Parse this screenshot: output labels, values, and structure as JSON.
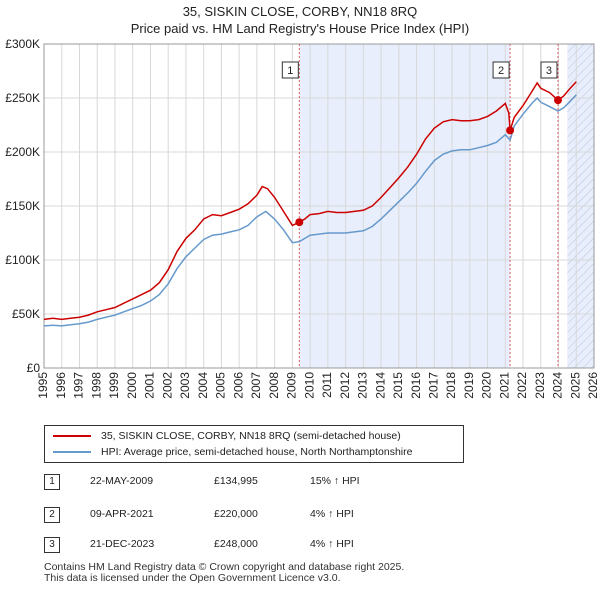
{
  "title_line1": "35, SISKIN CLOSE, CORBY, NN18 8RQ",
  "title_line2": "Price paid vs. HM Land Registry's House Price Index (HPI)",
  "colors": {
    "property": "#cc0000",
    "hpi": "#6699cc",
    "shade": "#e8eefb",
    "marker_vline": "#e06060"
  },
  "legend": {
    "property_label": "35, SISKIN CLOSE, CORBY, NN18 8RQ (semi-detached house)",
    "hpi_label": "HPI: Average price, semi-detached house, North Northamptonshire"
  },
  "transactions": [
    {
      "num": "1",
      "date": "22-MAY-2009",
      "price": "£134,995",
      "hpi_change": "15% ↑ HPI"
    },
    {
      "num": "2",
      "date": "09-APR-2021",
      "price": "£220,000",
      "hpi_change": "4% ↑ HPI"
    },
    {
      "num": "3",
      "date": "21-DEC-2023",
      "price": "£248,000",
      "hpi_change": "4% ↑ HPI"
    }
  ],
  "footer_line1": "Contains HM Land Registry data © Crown copyright and database right 2025.",
  "footer_line2": "This data is licensed under the Open Government Licence v3.0.",
  "chart_data": {
    "type": "line",
    "title": "35, SISKIN CLOSE, CORBY, NN18 8RQ — Price paid vs. HM Land Registry's House Price Index (HPI)",
    "xlabel": "",
    "ylabel": "",
    "xlim": [
      1995,
      2026
    ],
    "ylim": [
      0,
      300000
    ],
    "x_ticks": [
      "1995",
      "1996",
      "1997",
      "1998",
      "1999",
      "2000",
      "2001",
      "2002",
      "2003",
      "2004",
      "2005",
      "2006",
      "2007",
      "2008",
      "2009",
      "2010",
      "2011",
      "2012",
      "2013",
      "2014",
      "2015",
      "2016",
      "2017",
      "2018",
      "2019",
      "2020",
      "2021",
      "2022",
      "2023",
      "2024",
      "2025",
      "2026"
    ],
    "y_ticks": [
      {
        "value": 0,
        "label": "£0"
      },
      {
        "value": 50000,
        "label": "£50K"
      },
      {
        "value": 100000,
        "label": "£100K"
      },
      {
        "value": 150000,
        "label": "£150K"
      },
      {
        "value": 200000,
        "label": "£200K"
      },
      {
        "value": 250000,
        "label": "£250K"
      },
      {
        "value": 300000,
        "label": "£300K"
      }
    ],
    "grid": true,
    "shaded_ranges": [
      [
        2009.39,
        2021.27
      ],
      [
        2024.5,
        2026
      ]
    ],
    "hatched_range": [
      2024.5,
      2026
    ],
    "markers": [
      {
        "label": "1",
        "x": 2009.39,
        "y": 134995
      },
      {
        "label": "2",
        "x": 2021.27,
        "y": 220000
      },
      {
        "label": "3",
        "x": 2023.97,
        "y": 248000
      }
    ],
    "series": [
      {
        "name": "35, SISKIN CLOSE, CORBY, NN18 8RQ (semi-detached house)",
        "x": [
          1995,
          1995.5,
          1996,
          1996.5,
          1997,
          1997.5,
          1998,
          1998.5,
          1999,
          1999.5,
          2000,
          2000.5,
          2001,
          2001.5,
          2002,
          2002.5,
          2003,
          2003.5,
          2004,
          2004.5,
          2005,
          2005.5,
          2006,
          2006.5,
          2007,
          2007.3,
          2007.6,
          2008,
          2008.5,
          2009,
          2009.39,
          2009.7,
          2010,
          2010.5,
          2011,
          2011.5,
          2012,
          2012.5,
          2013,
          2013.5,
          2014,
          2014.5,
          2015,
          2015.5,
          2016,
          2016.5,
          2017,
          2017.5,
          2018,
          2018.5,
          2019,
          2019.5,
          2020,
          2020.5,
          2021,
          2021.2,
          2021.27,
          2021.5,
          2022,
          2022.5,
          2022.8,
          2023,
          2023.5,
          2023.97,
          2024.3,
          2024.6,
          2025
        ],
        "values": [
          45000,
          46000,
          45000,
          46000,
          47000,
          49000,
          52000,
          54000,
          56000,
          60000,
          64000,
          68000,
          72000,
          79000,
          91000,
          108000,
          120000,
          128000,
          138000,
          142000,
          141000,
          144000,
          147000,
          152000,
          160000,
          168000,
          166000,
          158000,
          145000,
          132000,
          134995,
          138000,
          142000,
          143000,
          145000,
          144000,
          144000,
          145000,
          146000,
          150000,
          158000,
          167000,
          176000,
          186000,
          198000,
          212000,
          222000,
          228000,
          230000,
          229000,
          229000,
          230000,
          233000,
          238000,
          245000,
          236000,
          220000,
          232000,
          243000,
          256000,
          264000,
          259000,
          255000,
          248000,
          252000,
          258000,
          265000
        ]
      },
      {
        "name": "HPI: Average price, semi-detached house, North Northamptonshire",
        "x": [
          1995,
          1995.5,
          1996,
          1996.5,
          1997,
          1997.5,
          1998,
          1998.5,
          1999,
          1999.5,
          2000,
          2000.5,
          2001,
          2001.5,
          2002,
          2002.5,
          2003,
          2003.5,
          2004,
          2004.5,
          2005,
          2005.5,
          2006,
          2006.5,
          2007,
          2007.5,
          2008,
          2008.5,
          2009,
          2009.39,
          2009.7,
          2010,
          2010.5,
          2011,
          2011.5,
          2012,
          2012.5,
          2013,
          2013.5,
          2014,
          2014.5,
          2015,
          2015.5,
          2016,
          2016.5,
          2017,
          2017.5,
          2018,
          2018.5,
          2019,
          2019.5,
          2020,
          2020.5,
          2021,
          2021.27,
          2021.5,
          2022,
          2022.5,
          2022.8,
          2023,
          2023.5,
          2023.97,
          2024.3,
          2024.6,
          2025
        ],
        "values": [
          39000,
          39500,
          39000,
          40000,
          41000,
          42500,
          45000,
          47000,
          49000,
          52000,
          55000,
          58000,
          62000,
          68000,
          78000,
          92000,
          103000,
          111000,
          119000,
          123000,
          124000,
          126000,
          128000,
          132000,
          140000,
          145000,
          138000,
          128000,
          116000,
          117000,
          120000,
          123000,
          124000,
          125000,
          125000,
          125000,
          126000,
          127000,
          131000,
          138000,
          146000,
          154000,
          162000,
          171000,
          182000,
          192000,
          198000,
          201000,
          202000,
          202000,
          204000,
          206000,
          209000,
          216000,
          211000,
          224000,
          235000,
          245000,
          250000,
          246000,
          242000,
          238000,
          241000,
          246000,
          253000
        ]
      }
    ]
  }
}
